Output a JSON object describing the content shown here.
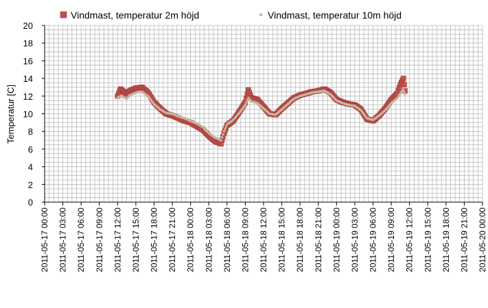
{
  "chart_data": {
    "type": "scatter",
    "ylabel": "Temperatur [C]",
    "xlabel": "",
    "ylim": [
      0,
      20
    ],
    "yticks": [
      0,
      2,
      4,
      6,
      8,
      10,
      12,
      14,
      16,
      18,
      20
    ],
    "xlim": [
      "2011-05-17 00:00",
      "2011-05-20 00:00"
    ],
    "xtick_labels": [
      "2011-05-17 00:00",
      "2011-05-17 03:00",
      "2011-05-17 06:00",
      "2011-05-17 09:00",
      "2011-05-17 12:00",
      "2011-05-17 15:00",
      "2011-05-17 18:00",
      "2011-05-17 21:00",
      "2011-05-18 00:00",
      "2011-05-18 03:00",
      "2011-05-18 06:00",
      "2011-05-18 09:00",
      "2011-05-18 12:00",
      "2011-05-18 15:00",
      "2011-05-18 18:00",
      "2011-05-18 21:00",
      "2011-05-19 00:00",
      "2011-05-19 03:00",
      "2011-05-19 06:00",
      "2011-05-19 09:00",
      "2011-05-19 12:00",
      "2011-05-19 15:00",
      "2011-05-19 18:00",
      "2011-05-19 21:00",
      "2011-05-20 00:00"
    ],
    "grid": true,
    "legend_position": "top",
    "series": [
      {
        "name": "Vindmast, temperatur 2m höjd",
        "color": "#c0504d",
        "marker": "square",
        "points": [
          [
            "2011-05-17 12:00",
            12.0
          ],
          [
            "2011-05-17 12:30",
            12.8
          ],
          [
            "2011-05-17 13:00",
            12.5
          ],
          [
            "2011-05-17 13:30",
            12.2
          ],
          [
            "2011-05-17 14:00",
            12.6
          ],
          [
            "2011-05-17 15:00",
            12.9
          ],
          [
            "2011-05-17 16:00",
            13.0
          ],
          [
            "2011-05-17 17:00",
            12.4
          ],
          [
            "2011-05-17 18:00",
            11.3
          ],
          [
            "2011-05-17 19:00",
            10.6
          ],
          [
            "2011-05-17 20:00",
            10.0
          ],
          [
            "2011-05-17 21:00",
            9.8
          ],
          [
            "2011-05-17 22:00",
            9.5
          ],
          [
            "2011-05-17 23:00",
            9.2
          ],
          [
            "2011-05-18 00:00",
            9.0
          ],
          [
            "2011-05-18 01:00",
            8.6
          ],
          [
            "2011-05-18 02:00",
            8.2
          ],
          [
            "2011-05-18 03:00",
            7.5
          ],
          [
            "2011-05-18 04:00",
            6.9
          ],
          [
            "2011-05-18 05:00",
            6.6
          ],
          [
            "2011-05-18 05:30",
            7.8
          ],
          [
            "2011-05-18 06:00",
            8.7
          ],
          [
            "2011-05-18 07:00",
            9.2
          ],
          [
            "2011-05-18 08:00",
            10.2
          ],
          [
            "2011-05-18 09:00",
            11.3
          ],
          [
            "2011-05-18 09:30",
            12.7
          ],
          [
            "2011-05-18 10:00",
            11.8
          ],
          [
            "2011-05-18 11:00",
            11.6
          ],
          [
            "2011-05-18 12:00",
            10.8
          ],
          [
            "2011-05-18 13:00",
            10.0
          ],
          [
            "2011-05-18 14:00",
            9.9
          ],
          [
            "2011-05-18 15:00",
            10.6
          ],
          [
            "2011-05-18 16:00",
            11.2
          ],
          [
            "2011-05-18 17:00",
            11.8
          ],
          [
            "2011-05-18 18:00",
            12.1
          ],
          [
            "2011-05-18 19:00",
            12.3
          ],
          [
            "2011-05-18 20:00",
            12.5
          ],
          [
            "2011-05-18 21:00",
            12.6
          ],
          [
            "2011-05-18 22:00",
            12.8
          ],
          [
            "2011-05-18 23:00",
            12.4
          ],
          [
            "2011-05-19 00:00",
            11.6
          ],
          [
            "2011-05-19 01:00",
            11.3
          ],
          [
            "2011-05-19 02:00",
            11.1
          ],
          [
            "2011-05-19 03:00",
            11.0
          ],
          [
            "2011-05-19 04:00",
            10.5
          ],
          [
            "2011-05-19 05:00",
            9.4
          ],
          [
            "2011-05-19 06:00",
            9.2
          ],
          [
            "2011-05-19 07:00",
            9.8
          ],
          [
            "2011-05-19 08:00",
            10.6
          ],
          [
            "2011-05-19 09:00",
            11.6
          ],
          [
            "2011-05-19 10:00",
            12.3
          ],
          [
            "2011-05-19 10:30",
            13.3
          ],
          [
            "2011-05-19 11:00",
            14.0
          ],
          [
            "2011-05-19 11:15",
            12.6
          ]
        ]
      },
      {
        "name": "Vindmast, temperatur 10m höjd",
        "color": "#c4b5a0",
        "marker": "dot",
        "points": [
          [
            "2011-05-17 12:00",
            11.8
          ],
          [
            "2011-05-17 12:30",
            12.0
          ],
          [
            "2011-05-17 13:00",
            11.9
          ],
          [
            "2011-05-17 13:30",
            11.7
          ],
          [
            "2011-05-17 14:00",
            12.1
          ],
          [
            "2011-05-17 15:00",
            12.4
          ],
          [
            "2011-05-17 16:00",
            12.5
          ],
          [
            "2011-05-17 17:00",
            12.0
          ],
          [
            "2011-05-17 18:00",
            11.1
          ],
          [
            "2011-05-17 19:00",
            10.5
          ],
          [
            "2011-05-17 20:00",
            10.1
          ],
          [
            "2011-05-17 21:00",
            10.0
          ],
          [
            "2011-05-17 22:00",
            9.7
          ],
          [
            "2011-05-17 23:00",
            9.5
          ],
          [
            "2011-05-18 00:00",
            9.2
          ],
          [
            "2011-05-18 01:00",
            8.9
          ],
          [
            "2011-05-18 02:00",
            8.5
          ],
          [
            "2011-05-18 03:00",
            7.8
          ],
          [
            "2011-05-18 04:00",
            7.3
          ],
          [
            "2011-05-18 05:00",
            7.0
          ],
          [
            "2011-05-18 05:30",
            8.0
          ],
          [
            "2011-05-18 06:00",
            8.8
          ],
          [
            "2011-05-18 07:00",
            9.3
          ],
          [
            "2011-05-18 08:00",
            10.1
          ],
          [
            "2011-05-18 09:00",
            11.0
          ],
          [
            "2011-05-18 09:30",
            11.8
          ],
          [
            "2011-05-18 10:00",
            11.4
          ],
          [
            "2011-05-18 11:00",
            11.2
          ],
          [
            "2011-05-18 12:00",
            10.6
          ],
          [
            "2011-05-18 13:00",
            10.0
          ],
          [
            "2011-05-18 14:00",
            9.9
          ],
          [
            "2011-05-18 15:00",
            10.5
          ],
          [
            "2011-05-18 16:00",
            11.1
          ],
          [
            "2011-05-18 17:00",
            11.7
          ],
          [
            "2011-05-18 18:00",
            12.0
          ],
          [
            "2011-05-18 19:00",
            12.2
          ],
          [
            "2011-05-18 20:00",
            12.4
          ],
          [
            "2011-05-18 21:00",
            12.5
          ],
          [
            "2011-05-18 22:00",
            12.6
          ],
          [
            "2011-05-18 23:00",
            12.2
          ],
          [
            "2011-05-19 00:00",
            11.5
          ],
          [
            "2011-05-19 01:00",
            11.2
          ],
          [
            "2011-05-19 02:00",
            11.0
          ],
          [
            "2011-05-19 03:00",
            10.9
          ],
          [
            "2011-05-19 04:00",
            10.4
          ],
          [
            "2011-05-19 05:00",
            9.5
          ],
          [
            "2011-05-19 06:00",
            9.3
          ],
          [
            "2011-05-19 07:00",
            9.8
          ],
          [
            "2011-05-19 08:00",
            10.4
          ],
          [
            "2011-05-19 09:00",
            11.2
          ],
          [
            "2011-05-19 10:00",
            11.8
          ],
          [
            "2011-05-19 10:30",
            12.3
          ],
          [
            "2011-05-19 11:00",
            12.7
          ],
          [
            "2011-05-19 11:15",
            12.2
          ]
        ]
      }
    ]
  }
}
